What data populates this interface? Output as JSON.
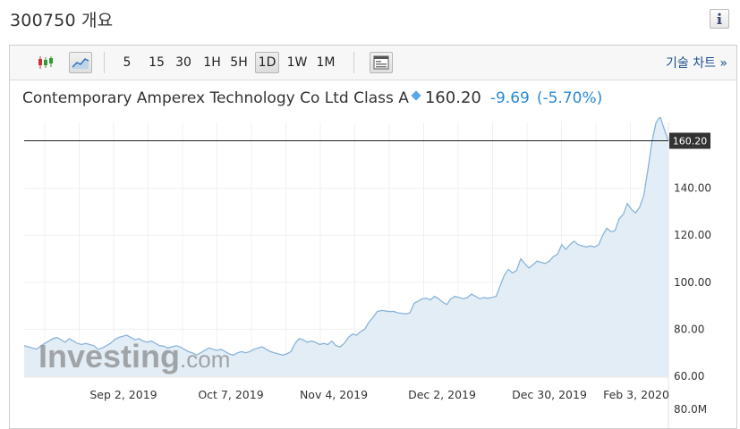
{
  "header": {
    "title": "300750 개요"
  },
  "toolbar": {
    "timeframes": [
      "5",
      "15",
      "30",
      "1H",
      "5H",
      "1D",
      "1W",
      "1M"
    ],
    "active_timeframe": "1D",
    "technical_link": "기술 차트 »"
  },
  "quote": {
    "name": "Contemporary Amperex Technology Co Ltd Class A",
    "price": "160.20",
    "change": "-9.69",
    "change_pct": "(-5.70%)"
  },
  "watermark": "Investing.com",
  "colors": {
    "area_fill": "#e3edf6",
    "line": "#8ab4d9",
    "accent": "#2a8ad6",
    "price_tag": "#333333"
  },
  "chart_data": {
    "type": "area",
    "x_ticks": [
      "Sep 2, 2019",
      "Oct 7, 2019",
      "Nov 4, 2019",
      "Dec 2, 2019",
      "Dec 30, 2019",
      "Feb 3, 2020"
    ],
    "y_ticks": [
      "140.00",
      "120.00",
      "100.00",
      "80.00",
      "60.00"
    ],
    "ylim": [
      60,
      168
    ],
    "current_price_label": "160.20",
    "current_price": 160.2,
    "volume_label": "80.0M",
    "series": [
      {
        "values": [
          73,
          72.5,
          72,
          71.5,
          72.8,
          74,
          75,
          76,
          76.5,
          75.5,
          74.5,
          76,
          75,
          74,
          73.5,
          74,
          73.5,
          73,
          71.5,
          72,
          73,
          74,
          75.5,
          76.5,
          77,
          77.5,
          76.5,
          75.5,
          76,
          75,
          74.5,
          75,
          74,
          73,
          72.8,
          72,
          72.5,
          73,
          72.5,
          71.5,
          70.5,
          70,
          69,
          70,
          71,
          72,
          71.5,
          71,
          71.5,
          70.5,
          69.5,
          69,
          70,
          70.5,
          70,
          70.5,
          71.5,
          72,
          72.5,
          71.5,
          70.5,
          70,
          69.5,
          69,
          69.5,
          70.5,
          74,
          76,
          75.5,
          74.5,
          75,
          74.5,
          73.5,
          74,
          73.5,
          75,
          73,
          72.5,
          74,
          76.5,
          78,
          77.5,
          79,
          80,
          83,
          85,
          87.5,
          88,
          87.8,
          87.5,
          87.6,
          87,
          86.8,
          86.5,
          87,
          91,
          92,
          93,
          93.2,
          92.5,
          94,
          93,
          91.5,
          90.5,
          93,
          94,
          93.5,
          93,
          93.5,
          95,
          94,
          93,
          93.5,
          93.2,
          93.5,
          94,
          98.5,
          103,
          105.5,
          104,
          105,
          110,
          108,
          106,
          107.5,
          109,
          108.5,
          108,
          109,
          111,
          112,
          116,
          114,
          116,
          117.5,
          116,
          115.5,
          115,
          115.5,
          115,
          116,
          120,
          123,
          121.5,
          122,
          127,
          129,
          133.5,
          131,
          129.5,
          132,
          137,
          148,
          160,
          168,
          170.5,
          165,
          160.2
        ]
      }
    ]
  }
}
